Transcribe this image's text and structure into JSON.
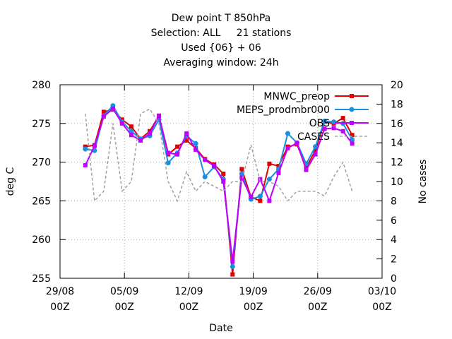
{
  "chart_data": {
    "type": "line",
    "title": [
      "Dew point T 850hPa",
      "Selection: ALL     21 stations",
      "Used {06} + 06",
      "Averaging window: 24h"
    ],
    "x_label": "Date",
    "y_label": "deg C",
    "y2_label": "No cases",
    "x": [
      2.75,
      3.75,
      4.75,
      5.75,
      6.75,
      7.75,
      8.75,
      9.75,
      10.75,
      11.75,
      12.75,
      13.75,
      14.75,
      15.75,
      16.75,
      17.75,
      18.75,
      19.75,
      20.75,
      21.75,
      22.75,
      23.75,
      24.75,
      25.75,
      26.75,
      27.75,
      28.75,
      29.75,
      30.75,
      31.75
    ],
    "xlim": [
      0,
      35
    ],
    "xticks": [
      {
        "value": 0,
        "label": "29/08\n00Z"
      },
      {
        "value": 7,
        "label": "05/09\n00Z"
      },
      {
        "value": 14,
        "label": "12/09\n00Z"
      },
      {
        "value": 21,
        "label": "19/09\n00Z"
      },
      {
        "value": 28,
        "label": "26/09\n00Z"
      },
      {
        "value": 35,
        "label": "03/10\n00Z"
      }
    ],
    "ylim": [
      255,
      280
    ],
    "yticks": [
      255,
      260,
      265,
      270,
      275,
      280
    ],
    "y2lim": [
      0,
      20
    ],
    "y2ticks": [
      0,
      2,
      4,
      6,
      8,
      10,
      12,
      14,
      16,
      18,
      20
    ],
    "grid": true,
    "legend": "top-right",
    "series": [
      {
        "name": "MNWC_preop",
        "color": "#e00000",
        "marker": "square",
        "line_style": "solid",
        "values": [
          272.0,
          272.2,
          276.5,
          276.8,
          275.5,
          274.6,
          273.0,
          274.0,
          276.0,
          271.0,
          272.0,
          272.8,
          271.8,
          270.4,
          269.7,
          268.5,
          255.5,
          269.1,
          265.5,
          265.0,
          269.8,
          269.5,
          272.0,
          272.3,
          269.3,
          271.5,
          275.2,
          275.0,
          275.7,
          273.5
        ]
      },
      {
        "name": "MEPS_prodmbr000",
        "color": "#1a8fe0",
        "marker": "circle",
        "line_style": "solid",
        "values": [
          271.7,
          271.5,
          276.0,
          277.3,
          275.2,
          274.0,
          273.0,
          273.4,
          275.5,
          269.9,
          271.2,
          273.4,
          272.4,
          268.1,
          269.4,
          267.8,
          256.5,
          268.5,
          265.2,
          265.6,
          267.8,
          269.1,
          273.7,
          272.5,
          269.8,
          272.0,
          275.3,
          275.2,
          275.0,
          272.9
        ]
      },
      {
        "name": "OBS",
        "color": "#c000ff",
        "marker": "square",
        "line_style": "solid",
        "values": [
          269.6,
          272.1,
          275.9,
          276.9,
          275.0,
          273.5,
          272.8,
          273.7,
          276.0,
          271.2,
          271.0,
          273.7,
          271.6,
          270.3,
          269.5,
          267.5,
          257.2,
          268.0,
          265.5,
          267.8,
          265.0,
          268.6,
          271.8,
          272.5,
          269.0,
          271.0,
          274.3,
          274.4,
          274.0,
          272.4
        ]
      },
      {
        "name": "CASES",
        "color": "#a0a0a0",
        "marker": "none",
        "line_style": "dashed",
        "axis": "y2",
        "values": [
          17,
          8,
          9,
          16,
          9,
          10,
          17,
          17.5,
          16,
          10,
          8,
          11,
          9,
          10,
          9.5,
          9,
          10,
          10,
          13.8,
          10,
          10,
          9.5,
          8,
          9,
          9,
          9,
          8.5,
          10.5,
          12,
          9
        ]
      }
    ]
  }
}
